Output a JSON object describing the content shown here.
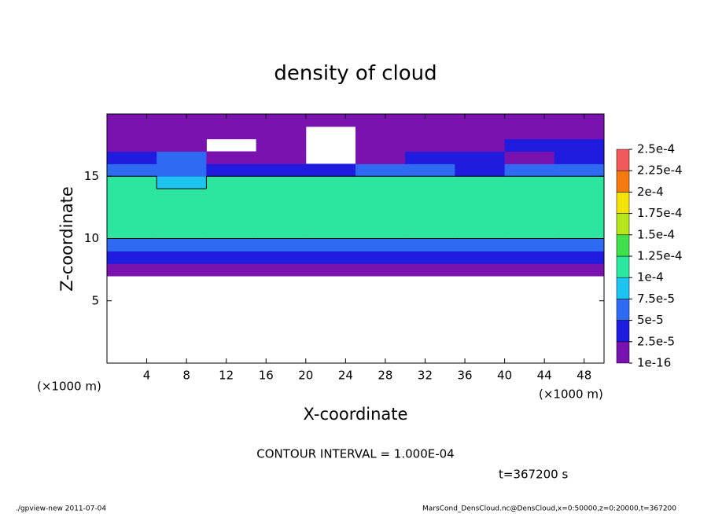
{
  "chart_data": {
    "type": "contour",
    "title": "density of cloud",
    "x_label": "X-coordinate",
    "y_label": "Z-coordinate",
    "x_unit_label": "(×1000 m)",
    "contour_note": "CONTOUR INTERVAL = 1.000E-04",
    "contour_interval": 0.0001,
    "time_label": "t=367200 s",
    "footer_left": "./gpview-new  2011-07-04",
    "footer_right": "MarsCond_DensCloud.nc@DensCloud,x=0:50000,z=0:20000,t=367200",
    "xlim": [
      0,
      50
    ],
    "ylim": [
      0,
      20
    ],
    "xticks": [
      4,
      8,
      12,
      16,
      20,
      24,
      28,
      32,
      36,
      40,
      44,
      48
    ],
    "yticks": [
      5,
      10,
      15
    ],
    "levels": [
      {
        "value": 1e-16,
        "label": "1e-16"
      },
      {
        "value": 2.5e-05,
        "label": "2.5e-5"
      },
      {
        "value": 5e-05,
        "label": "5e-5"
      },
      {
        "value": 7.5e-05,
        "label": "7.5e-5"
      },
      {
        "value": 0.0001,
        "label": "1e-4"
      },
      {
        "value": 0.000125,
        "label": "1.25e-4"
      },
      {
        "value": 0.00015,
        "label": "1.5e-4"
      },
      {
        "value": 0.000175,
        "label": "1.75e-4"
      },
      {
        "value": 0.0002,
        "label": "2e-4"
      },
      {
        "value": 0.000225,
        "label": "2.25e-4"
      },
      {
        "value": 0.00025,
        "label": "2.5e-4"
      }
    ],
    "colors": [
      "#7a12b0",
      "#1f1ce0",
      "#2f6af2",
      "#1ec4f0",
      "#2ce6a0",
      "#3fe04a",
      "#b6e61e",
      "#f2e20a",
      "#f27a10",
      "#f0585a"
    ],
    "x": [
      2.5,
      7.5,
      12.5,
      17.5,
      22.5,
      27.5,
      32.5,
      37.5,
      42.5,
      47.5
    ],
    "y": [
      0.5,
      1.5,
      2.5,
      3.5,
      4.5,
      5.5,
      6.5,
      7.5,
      8.5,
      9.5,
      10.5,
      11.5,
      12.5,
      13.5,
      14.5,
      15.5,
      16.5,
      17.5,
      18.5,
      19.5
    ],
    "values": [
      [
        null,
        null,
        null,
        null,
        null,
        null,
        null,
        null,
        null,
        null
      ],
      [
        null,
        null,
        null,
        null,
        null,
        null,
        null,
        null,
        null,
        null
      ],
      [
        null,
        null,
        null,
        null,
        null,
        null,
        null,
        null,
        null,
        null
      ],
      [
        null,
        null,
        null,
        null,
        null,
        null,
        null,
        null,
        null,
        null
      ],
      [
        null,
        null,
        null,
        null,
        null,
        null,
        null,
        null,
        null,
        null
      ],
      [
        null,
        null,
        null,
        null,
        null,
        null,
        null,
        null,
        null,
        null
      ],
      [
        null,
        null,
        null,
        null,
        null,
        null,
        null,
        null,
        null,
        null
      ],
      [
        1e-06,
        1e-06,
        1e-06,
        1e-06,
        1e-06,
        1e-06,
        1e-06,
        1e-06,
        1e-06,
        1e-06
      ],
      [
        3e-05,
        3e-05,
        3e-05,
        3e-05,
        3e-05,
        3e-05,
        3e-05,
        3e-05,
        3e-05,
        3e-05
      ],
      [
        7e-05,
        7e-05,
        7e-05,
        7e-05,
        7e-05,
        7e-05,
        7e-05,
        7e-05,
        7e-05,
        7e-05
      ],
      [
        0.000105,
        0.000105,
        0.000105,
        0.000105,
        0.000105,
        0.000105,
        0.000105,
        0.000105,
        0.000105,
        0.000105
      ],
      [
        0.00012,
        0.00012,
        0.00012,
        0.00012,
        0.00012,
        0.00012,
        0.00012,
        0.00012,
        0.00012,
        0.00012
      ],
      [
        0.00012,
        0.00012,
        0.00012,
        0.00012,
        0.00012,
        0.00012,
        0.00012,
        0.00012,
        0.00012,
        0.00012
      ],
      [
        0.00012,
        0.00012,
        0.00012,
        0.00012,
        0.00012,
        0.00012,
        0.00012,
        0.00012,
        0.00012,
        0.00012
      ],
      [
        0.00011,
        8e-05,
        0.000105,
        0.000105,
        0.000105,
        0.000105,
        0.000105,
        0.000105,
        0.000105,
        0.000105
      ],
      [
        5.5e-05,
        7e-05,
        4e-05,
        4e-05,
        4.5e-05,
        5e-05,
        5e-05,
        4e-05,
        5e-05,
        5e-05
      ],
      [
        3e-05,
        5e-05,
        2e-05,
        2e-05,
        null,
        2e-05,
        2.5e-05,
        3e-05,
        2e-05,
        2.5e-05
      ],
      [
        2e-05,
        2e-05,
        null,
        1e-05,
        null,
        1e-05,
        1e-05,
        1.5e-05,
        3e-05,
        3e-05
      ],
      [
        1.5e-05,
        1e-05,
        1e-05,
        1e-05,
        null,
        5e-06,
        5e-06,
        1e-05,
        2e-05,
        2e-05
      ],
      [
        5e-06,
        5e-06,
        5e-06,
        5e-06,
        5e-06,
        5e-06,
        5e-06,
        5e-06,
        5e-06,
        5e-06
      ]
    ]
  }
}
